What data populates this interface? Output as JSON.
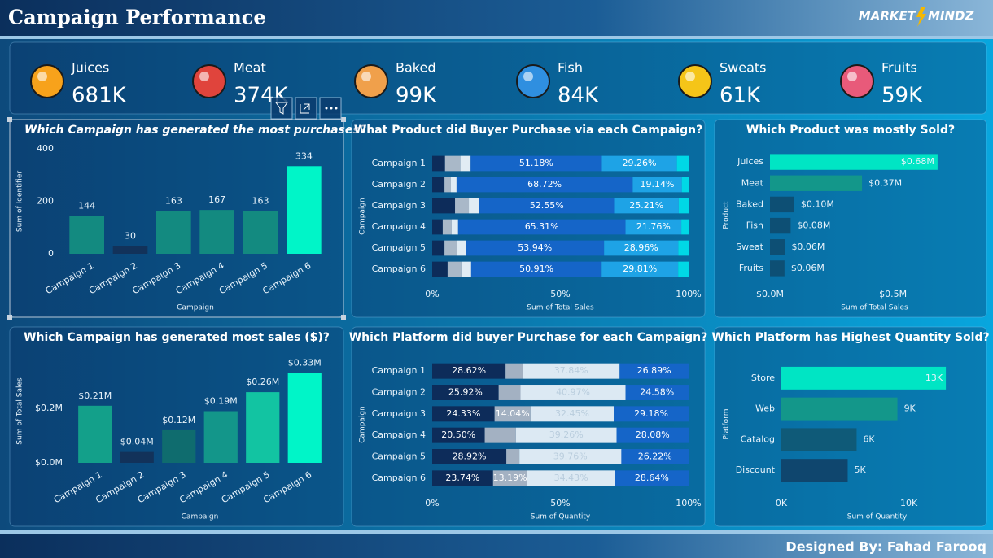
{
  "header": {
    "title": "Campaign Performance",
    "logo_left": "MARKET",
    "logo_right": "MINDZ",
    "footer": "Designed By: Fahad Farooq"
  },
  "kpis": [
    {
      "label": "Juices",
      "value": "681K"
    },
    {
      "label": "Meat",
      "value": "374K"
    },
    {
      "label": "Baked",
      "value": "99K"
    },
    {
      "label": "Fish",
      "value": "84K"
    },
    {
      "label": "Sweats",
      "value": "61K"
    },
    {
      "label": "Fruits",
      "value": "59K"
    }
  ],
  "chart_data": [
    {
      "type": "bar",
      "title": "Which Campaign has generated the most purchases?",
      "xlabel": "Campaign",
      "ylabel": "Sum of Identifier",
      "categories": [
        "Campaign 1",
        "Campaign 2",
        "Campaign 3",
        "Campaign 4",
        "Campaign 5",
        "Campaign 6"
      ],
      "values": [
        144,
        30,
        163,
        167,
        163,
        334
      ],
      "colors": [
        "#138a80",
        "#12325a",
        "#138a80",
        "#138a80",
        "#138a80",
        "#00f5c8"
      ],
      "ylim": [
        0,
        400
      ],
      "yticks": [
        0,
        200,
        400
      ],
      "grid": false
    },
    {
      "type": "stacked_bar",
      "title": "What Product did Buyer Purchase via each Campaign?",
      "xlabel": "Sum of Total Sales",
      "ylabel": "Campaign",
      "categories": [
        "Campaign 1",
        "Campaign 2",
        "Campaign 3",
        "Campaign 4",
        "Campaign 5",
        "Campaign 6"
      ],
      "series": [
        {
          "color": "#0d2c5a",
          "values": [
            5,
            4.8,
            8.9,
            4.1,
            4.8,
            6
          ]
        },
        {
          "color": "#a9b8c8",
          "values": [
            6,
            2.5,
            5.4,
            3.5,
            4.8,
            5.4
          ]
        },
        {
          "color": "#e1ecf4",
          "values": [
            4,
            2.2,
            4.1,
            2.5,
            3.5,
            3.8
          ]
        },
        {
          "color": "#1565c8",
          "values": [
            51.18,
            68.72,
            52.55,
            65.31,
            53.94,
            50.91
          ],
          "value_labels": [
            "51.18%",
            "68.72%",
            "52.55%",
            "65.31%",
            "53.94%",
            "50.91%"
          ]
        },
        {
          "color": "#1ea3e6",
          "values": [
            29.26,
            19.14,
            25.21,
            21.76,
            28.96,
            29.81
          ],
          "value_labels": [
            "29.26%",
            "19.14%",
            "25.21%",
            "21.76%",
            "28.96%",
            "29.81%"
          ]
        },
        {
          "color": "#00d8e6",
          "values": [
            4.56,
            2.64,
            3.84,
            2.83,
            4.0,
            4.08
          ]
        }
      ],
      "xlim": [
        0,
        100
      ],
      "xticks": [
        {
          "value": 0,
          "label": "0%"
        },
        {
          "value": 50,
          "label": "50%"
        },
        {
          "value": 100,
          "label": "100%"
        }
      ]
    },
    {
      "type": "hbar",
      "title": "Which Product was mostly Sold?",
      "xlabel": "Sum of Total Sales",
      "ylabel": "Product",
      "categories": [
        "Juices",
        "Meat",
        "Baked",
        "Fish",
        "Sweat",
        "Fruits"
      ],
      "values": [
        681000,
        374000,
        99000,
        84000,
        61000,
        59000
      ],
      "value_labels": [
        "$0.68M",
        "$0.37M",
        "$0.10M",
        "$0.08M",
        "$0.06M",
        "$0.06M"
      ],
      "colors": [
        "#00e5c4",
        "#13978a",
        "#0d4f74",
        "#0d4f74",
        "#0d4f74",
        "#0d4f74"
      ],
      "xlim": [
        0,
        850000
      ],
      "xticks": [
        {
          "value": 0,
          "label": "$0.0M"
        },
        {
          "value": 500000,
          "label": "$0.5M"
        }
      ]
    },
    {
      "type": "bar",
      "title": "Which Campaign has generated most sales ($)?",
      "xlabel": "Campaign",
      "ylabel": "Sum of Total Sales",
      "categories": [
        "Campaign 1",
        "Campaign 2",
        "Campaign 3",
        "Campaign 4",
        "Campaign 5",
        "Campaign 6"
      ],
      "values": [
        210000,
        40000,
        120000,
        190000,
        260000,
        330000
      ],
      "value_labels": [
        "$0.21M",
        "$0.04M",
        "$0.12M",
        "$0.19M",
        "$0.26M",
        "$0.33M"
      ],
      "colors": [
        "#13a08a",
        "#12325a",
        "#0f6c6e",
        "#13968a",
        "#12c4a2",
        "#00f5c8"
      ],
      "ylim": [
        0,
        380000
      ],
      "yticks": [
        {
          "value": 0,
          "label": "$0.0M"
        },
        {
          "value": 200000,
          "label": "$0.2M"
        }
      ],
      "grid": false
    },
    {
      "type": "stacked_bar",
      "title": "Which Platform did buyer Purchase for each Campaign?",
      "xlabel": "Sum of Quantity",
      "ylabel": "Campaign",
      "categories": [
        "Campaign 1",
        "Campaign 2",
        "Campaign 3",
        "Campaign 4",
        "Campaign 5",
        "Campaign 6"
      ],
      "series": [
        {
          "color": "#0d2c5a",
          "values": [
            28.62,
            25.92,
            24.33,
            20.5,
            28.92,
            23.74
          ],
          "value_labels": [
            "28.62%",
            "25.92%",
            "24.33%",
            "20.50%",
            "28.92%",
            "23.74%"
          ]
        },
        {
          "color": "#a3b1c2",
          "values": [
            6.65,
            8.53,
            14.04,
            12.16,
            5.1,
            13.19
          ],
          "value_labels": [
            null,
            null,
            "14.04%",
            null,
            null,
            "13.19%"
          ]
        },
        {
          "color": "#dce9f3",
          "values": [
            37.84,
            40.97,
            32.45,
            39.26,
            39.76,
            34.43
          ],
          "value_labels": [
            "37.84%",
            "40.97%",
            "32.45%",
            "39.26%",
            "39.76%",
            "34.43%"
          ]
        },
        {
          "color": "#1565c8",
          "values": [
            26.89,
            24.58,
            29.18,
            28.08,
            26.22,
            28.64
          ],
          "value_labels": [
            "26.89%",
            "24.58%",
            "29.18%",
            "28.08%",
            "26.22%",
            "28.64%"
          ]
        }
      ],
      "xlim": [
        0,
        100
      ],
      "xticks": [
        {
          "value": 0,
          "label": "0%"
        },
        {
          "value": 50,
          "label": "50%"
        },
        {
          "value": 100,
          "label": "100%"
        }
      ]
    },
    {
      "type": "hbar",
      "title": "Which Platform has Highest Quantity Sold?",
      "xlabel": "Sum of Quantity",
      "ylabel": "Platform",
      "categories": [
        "Store",
        "Web",
        "Catalog",
        "Discount"
      ],
      "values": [
        12900,
        9100,
        5900,
        5200
      ],
      "value_labels": [
        "13K",
        "9K",
        "6K",
        "5K"
      ],
      "colors": [
        "#00e5c4",
        "#13978a",
        "#0f5a78",
        "#0f466e"
      ],
      "xlim": [
        0,
        15000
      ],
      "xticks": [
        {
          "value": 0,
          "label": "0K"
        },
        {
          "value": 10000,
          "label": "10K"
        }
      ]
    }
  ]
}
